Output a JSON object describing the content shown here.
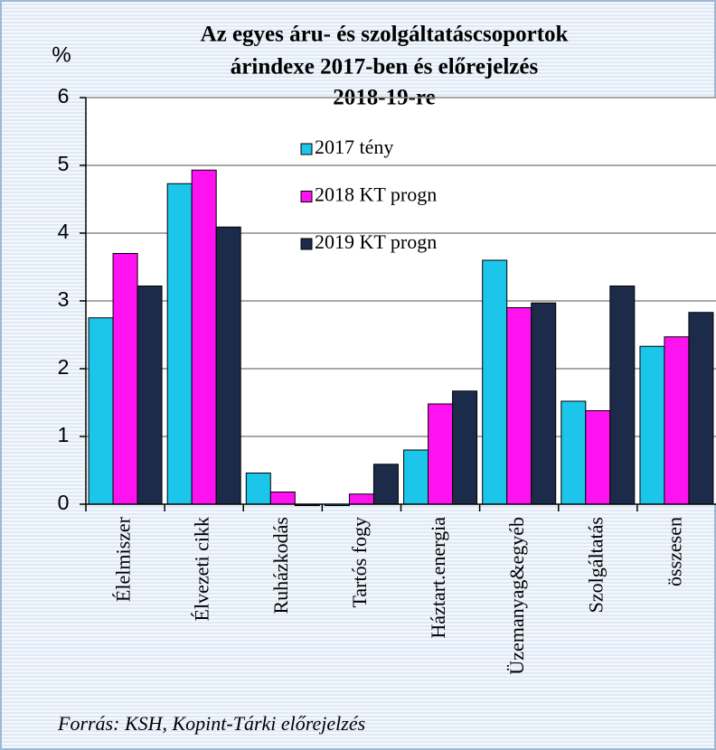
{
  "chart_data": {
    "type": "bar",
    "title": [
      "Az egyes áru- és szolgáltatáscsoportok",
      "árindexe 2017-ben és előrejelzés",
      "2018-19-re"
    ],
    "y_label": "%",
    "source": "Forrás: KSH, Kopint-Tárki előrejelzés",
    "categories": [
      "Élelmiszer",
      "Élvezeti cikk",
      "Ruházkodás",
      "Tartós fogy",
      "Háztart.energia",
      "Üzemanyag&egyéb",
      "Szolgáltatás",
      "összesen"
    ],
    "series": [
      {
        "name": "2017 tény",
        "color": "#1cc6ea",
        "values": [
          2.75,
          4.73,
          0.46,
          -0.02,
          0.8,
          3.6,
          1.52,
          2.33
        ]
      },
      {
        "name": "2018 KT progn",
        "color": "#ff12f0",
        "values": [
          3.7,
          4.93,
          0.18,
          0.15,
          1.48,
          2.9,
          1.38,
          2.47
        ]
      },
      {
        "name": "2019 KT progn",
        "color": "#1c2b4a",
        "values": [
          3.22,
          4.09,
          -0.02,
          0.59,
          1.67,
          2.97,
          3.22,
          2.83
        ]
      }
    ],
    "ylim": [
      0,
      6
    ],
    "yticks": [
      0,
      1,
      2,
      3,
      4,
      5,
      6
    ],
    "grid": true
  }
}
